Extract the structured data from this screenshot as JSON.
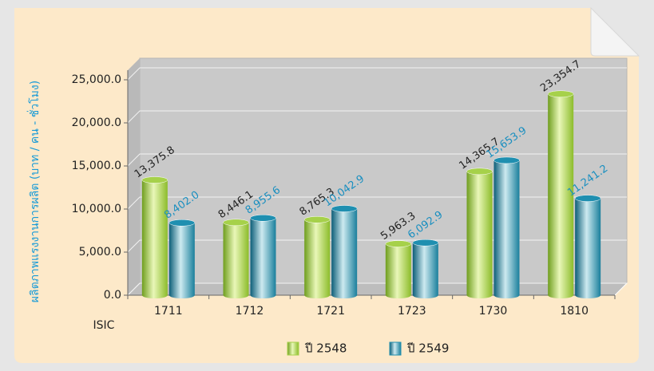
{
  "chart_data": {
    "type": "bar",
    "y_label": "ผลิตภาพแรงงานการผลิต (บาท / คน - ชั่วโมง)",
    "x_label": "ISIC",
    "categories": [
      "1711",
      "1712",
      "1721",
      "1723",
      "1730",
      "1810"
    ],
    "series": [
      {
        "name": "ปี 2548",
        "color": "#a6d14a",
        "values": [
          13375.8,
          8446.1,
          8765.3,
          5963.3,
          14365.7,
          23354.7
        ],
        "value_labels": [
          "13,375.8",
          "8,446.1",
          "8,765.3",
          "5,963.3",
          "14,365.7",
          "23,354.7"
        ]
      },
      {
        "name": "ปี 2549",
        "color": "#1f8fb0",
        "values": [
          8402.0,
          8955.6,
          10042.9,
          6092.9,
          15653.9,
          11241.2
        ],
        "value_labels": [
          "8,402.0",
          "8,955.6",
          "10,042.9",
          "6,092.9",
          "15,653.9",
          "11,241.2"
        ]
      }
    ],
    "ylim": [
      0,
      25000
    ],
    "yticks": [
      {
        "value": 0,
        "label": "0.0"
      },
      {
        "value": 5000,
        "label": "5,000.0"
      },
      {
        "value": 10000,
        "label": "10,000.0"
      },
      {
        "value": 15000,
        "label": "15,000.0"
      },
      {
        "value": 20000,
        "label": "20,000.0"
      },
      {
        "value": 25000,
        "label": "25,000.0"
      }
    ],
    "grid": true,
    "legend": "bottom"
  }
}
